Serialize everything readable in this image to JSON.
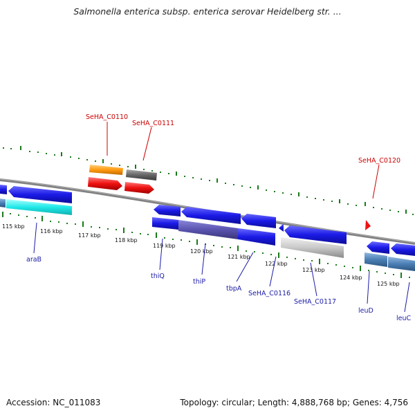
{
  "title": "Salmonella enterica subsp. enterica serovar Heidelberg str. ...",
  "footer": {
    "accession": "Accession: NC_011083",
    "topology": "Topology: circular; Length: 4,888,768 bp; Genes: 4,756"
  },
  "ruler_ticks": [
    "115 kbp",
    "116 kbp",
    "117 kbp",
    "118 kbp",
    "119 kbp",
    "120 kbp",
    "121 kbp",
    "122 kbp",
    "123 kbp",
    "124 kbp",
    "125 kbp"
  ],
  "forward_labels": [
    "SeHA_C0110",
    "SeHA_C0111",
    "SeHA_C0120"
  ],
  "reverse_labels": [
    "araB",
    "thiQ",
    "thiP",
    "tbpA",
    "SeHA_C0116",
    "SeHA_C0117",
    "leuD",
    "leuC"
  ],
  "colors": {
    "cds_blue": "#1a1ae6",
    "rrna_cyan": "#20e8e8",
    "orange": "#ff9a10",
    "gray": "#666666",
    "red": "#ee1111",
    "light_gray": "#c8c8c8",
    "steel_blue": "#4a7fb5",
    "tick_green": "#1a7a1a",
    "backbone": "#808080"
  }
}
